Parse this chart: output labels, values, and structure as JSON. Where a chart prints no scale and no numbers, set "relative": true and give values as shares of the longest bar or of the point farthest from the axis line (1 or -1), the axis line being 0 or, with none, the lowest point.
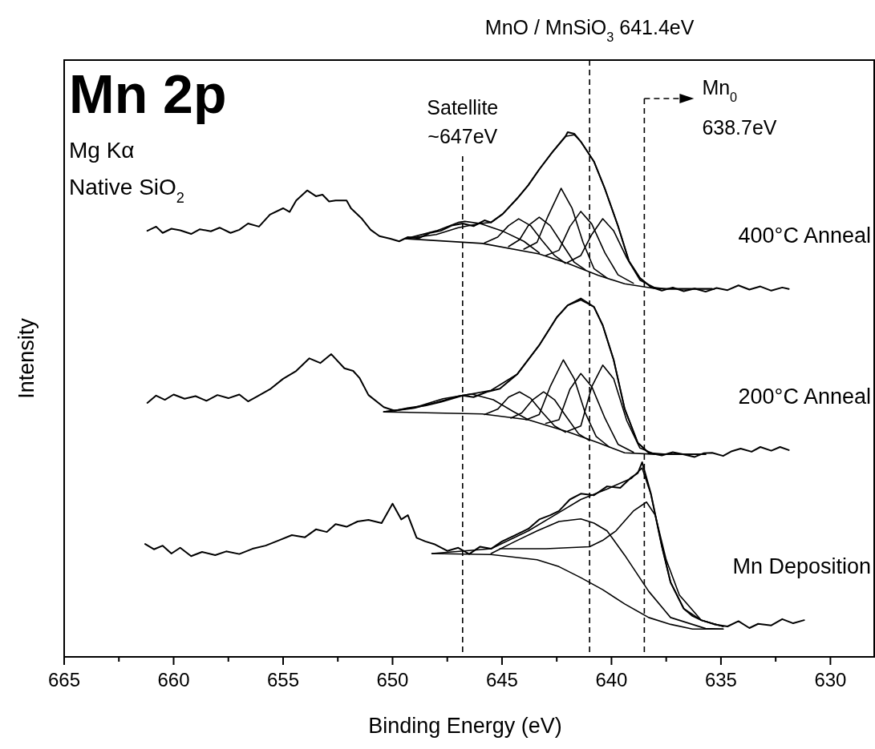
{
  "chart_data": {
    "type": "line",
    "relative": true,
    "xlabel": "Binding Energy (eV)",
    "ylabel": "Intensity",
    "xlim": [
      665,
      628
    ],
    "xticks": [
      665,
      {
        "value": 662.5,
        "label": null
      },
      660,
      {
        "value": 657.5,
        "label": null
      },
      655,
      {
        "value": 652.5,
        "label": null
      },
      650,
      {
        "value": 647.5,
        "label": null
      },
      645,
      {
        "value": 642.5,
        "label": null
      },
      640,
      {
        "value": 637.5,
        "label": null
      },
      635,
      {
        "value": 632.5,
        "label": null
      },
      630
    ],
    "line_style": "solid",
    "marker": "none",
    "grid": false,
    "annotations": [
      "Mn 2p",
      "Mg Kα",
      "Native SiO$_{2}$"
    ],
    "ref_lines": [
      {
        "axis": "x",
        "value": 646.8,
        "label": "Satellite ~647eV",
        "line_style": "dashed"
      },
      {
        "axis": "x",
        "value": 641.0,
        "label": "MnO / MnSiO$_{3}$ 641.4eV",
        "line_style": "dashed"
      },
      {
        "axis": "x",
        "value": 638.5,
        "label": "Mn$_{0}$ 638.7eV",
        "line_style": "dashed"
      }
    ],
    "series": [
      {
        "name": "400°C Anneal",
        "color": "#000000",
        "x": [
          661.2,
          660.8,
          660.5,
          660.1,
          659.7,
          659.2,
          658.8,
          658.3,
          657.9,
          657.4,
          657.0,
          656.6,
          656.1,
          655.6,
          655.0,
          654.7,
          654.4,
          653.9,
          653.5,
          653.2,
          652.9,
          652.6,
          652.1,
          651.9,
          651.4,
          651.0,
          650.6,
          650.1,
          649.7,
          649.3,
          648.8,
          648.3,
          647.8,
          647.3,
          646.8,
          646.3,
          645.8,
          645.5,
          644.97,
          644.3,
          643.8,
          643.3,
          642.7,
          642.1,
          642.0,
          641.7,
          641.4,
          640.8,
          640.3,
          639.7,
          639.2,
          638.7,
          638.2,
          637.7,
          637.2,
          636.7,
          636.2,
          635.7,
          635.2,
          634.7,
          634.2,
          633.7,
          633.2,
          632.7,
          632.2,
          631.9
        ],
        "values": [
          0.812,
          0.82,
          0.808,
          0.816,
          0.813,
          0.806,
          0.815,
          0.811,
          0.818,
          0.808,
          0.814,
          0.826,
          0.82,
          0.843,
          0.855,
          0.848,
          0.87,
          0.889,
          0.878,
          0.881,
          0.868,
          0.87,
          0.87,
          0.855,
          0.835,
          0.814,
          0.802,
          0.797,
          0.792,
          0.8,
          0.798,
          0.808,
          0.812,
          0.822,
          0.826,
          0.821,
          0.832,
          0.828,
          0.844,
          0.874,
          0.899,
          0.929,
          0.962,
          0.992,
          1.0,
          0.997,
          0.982,
          0.944,
          0.892,
          0.821,
          0.754,
          0.722,
          0.705,
          0.698,
          0.704,
          0.697,
          0.702,
          0.696,
          0.703,
          0.699,
          0.708,
          0.7,
          0.706,
          0.698,
          0.704,
          0.701
        ]
      },
      {
        "color": "#000000",
        "x": [
          649.4,
          648,
          647,
          646,
          645.5,
          644.97,
          644.3,
          643.8,
          643.3,
          642.7,
          642.1,
          641.7,
          641.4,
          640.8,
          640.3,
          639.7,
          639.2,
          638.7,
          638.2,
          637.5,
          636,
          635.3
        ],
        "values": [
          0.797,
          0.805,
          0.818,
          0.826,
          0.828,
          0.844,
          0.874,
          0.899,
          0.929,
          0.962,
          0.992,
          0.995,
          0.982,
          0.944,
          0.892,
          0.821,
          0.754,
          0.722,
          0.705,
          0.701,
          0.701,
          0.701
        ]
      },
      {
        "color": "#000000",
        "x": [
          649.4,
          645.9,
          643.3,
          642.0,
          640.6,
          639.4,
          638.0,
          635.4
        ],
        "values": [
          0.797,
          0.788,
          0.768,
          0.75,
          0.727,
          0.711,
          0.702,
          0.702
        ]
      },
      {
        "color": "#000000",
        "x": [
          649.4,
          648,
          647,
          646.7,
          646,
          645,
          644,
          643.3
        ],
        "values": [
          0.797,
          0.812,
          0.828,
          0.83,
          0.826,
          0.812,
          0.792,
          0.77
        ]
      },
      {
        "color": "#000000",
        "x": [
          645.8,
          645.2,
          644.7,
          644.24,
          643.7,
          643.2,
          642.6,
          642.1
        ],
        "values": [
          0.789,
          0.8,
          0.822,
          0.835,
          0.822,
          0.795,
          0.765,
          0.75
        ]
      },
      {
        "color": "#000000",
        "x": [
          644.7,
          644.2,
          643.8,
          643.3,
          642.8,
          642.3,
          641.7,
          641.2
        ],
        "values": [
          0.782,
          0.795,
          0.822,
          0.838,
          0.822,
          0.79,
          0.752,
          0.738
        ]
      },
      {
        "color": "#000000",
        "x": [
          644.0,
          643.4,
          642.9,
          642.3,
          641.8,
          641.3,
          640.8,
          640.2
        ],
        "values": [
          0.777,
          0.79,
          0.84,
          0.893,
          0.855,
          0.79,
          0.74,
          0.722
        ]
      },
      {
        "color": "#000000",
        "x": [
          643.0,
          642.4,
          641.9,
          641.4,
          640.9,
          640.3,
          639.7,
          639.0
        ],
        "values": [
          0.765,
          0.775,
          0.82,
          0.849,
          0.825,
          0.77,
          0.728,
          0.712
        ]
      },
      {
        "color": "#000000",
        "x": [
          642.0,
          641.4,
          640.9,
          640.4,
          639.9,
          639.3,
          638.7,
          638.0
        ],
        "values": [
          0.752,
          0.765,
          0.805,
          0.835,
          0.812,
          0.76,
          0.718,
          0.703
        ]
      },
      {
        "name": "200°C Anneal",
        "color": "#000000",
        "x": [
          661.2,
          660.8,
          660.4,
          660.0,
          659.5,
          659.0,
          658.5,
          658.0,
          657.5,
          657.0,
          656.6,
          656.2,
          655.6,
          655.0,
          654.4,
          653.8,
          653.3,
          652.8,
          652.2,
          651.8,
          651.5,
          651.1,
          650.4,
          649.9,
          649.2,
          648.5,
          647.8,
          647.3,
          646.8,
          646.3,
          645.7,
          645.1,
          644.3,
          643.3,
          642.5,
          642.0,
          641.4,
          640.8,
          640.4,
          639.9,
          639.4,
          638.8,
          638.3,
          637.7,
          637.2,
          636.7,
          636.2,
          635.8,
          635.4,
          634.9,
          634.5,
          634.1,
          633.6,
          633.2,
          632.7,
          632.3,
          631.9
        ],
        "values": [
          0.484,
          0.498,
          0.49,
          0.5,
          0.492,
          0.497,
          0.488,
          0.499,
          0.493,
          0.5,
          0.487,
          0.496,
          0.51,
          0.53,
          0.545,
          0.569,
          0.56,
          0.577,
          0.55,
          0.545,
          0.531,
          0.499,
          0.476,
          0.469,
          0.475,
          0.479,
          0.486,
          0.492,
          0.498,
          0.495,
          0.505,
          0.511,
          0.539,
          0.594,
          0.647,
          0.67,
          0.683,
          0.667,
          0.632,
          0.566,
          0.473,
          0.408,
          0.389,
          0.384,
          0.39,
          0.386,
          0.381,
          0.388,
          0.389,
          0.383,
          0.392,
          0.397,
          0.391,
          0.4,
          0.393,
          0.4,
          0.394
        ]
      },
      {
        "color": "#000000",
        "x": [
          650.4,
          649,
          648,
          647,
          646.4,
          645.5,
          644.3,
          643.3,
          642.5,
          642.0,
          641.4,
          640.8,
          640.4,
          639.9,
          639.4,
          638.8,
          638.3,
          637.5,
          635.7
        ],
        "values": [
          0.467,
          0.474,
          0.485,
          0.497,
          0.501,
          0.508,
          0.539,
          0.594,
          0.647,
          0.67,
          0.68,
          0.667,
          0.632,
          0.566,
          0.473,
          0.408,
          0.389,
          0.386,
          0.386
        ]
      },
      {
        "color": "#000000",
        "x": [
          650.4,
          645.9,
          643.8,
          642.0,
          640.6,
          639.4,
          638.0,
          635.7
        ],
        "values": [
          0.467,
          0.463,
          0.452,
          0.429,
          0.408,
          0.389,
          0.386,
          0.386
        ]
      },
      {
        "color": "#000000",
        "x": [
          650.4,
          649,
          647.7,
          646.4,
          645.4,
          644.5,
          643.8
        ],
        "values": [
          0.467,
          0.475,
          0.492,
          0.501,
          0.49,
          0.468,
          0.452
        ]
      },
      {
        "color": "#000000",
        "x": [
          645.8,
          645.2,
          644.7,
          644.2,
          643.7,
          643.2,
          642.6,
          642.1
        ],
        "values": [
          0.462,
          0.472,
          0.495,
          0.505,
          0.493,
          0.468,
          0.44,
          0.428
        ]
      },
      {
        "color": "#000000",
        "x": [
          644.6,
          644.1,
          643.6,
          643.1,
          642.6,
          642.1,
          641.5,
          641.0
        ],
        "values": [
          0.455,
          0.465,
          0.49,
          0.505,
          0.49,
          0.46,
          0.425,
          0.412
        ]
      },
      {
        "color": "#000000",
        "x": [
          643.9,
          643.3,
          642.8,
          642.2,
          641.7,
          641.2,
          640.7,
          640.1
        ],
        "values": [
          0.452,
          0.462,
          0.515,
          0.566,
          0.53,
          0.465,
          0.42,
          0.4
        ]
      },
      {
        "color": "#000000",
        "x": [
          643.0,
          642.4,
          641.9,
          641.4,
          640.9,
          640.3,
          639.7,
          639.0
        ],
        "values": [
          0.445,
          0.452,
          0.51,
          0.54,
          0.515,
          0.455,
          0.405,
          0.39
        ]
      },
      {
        "color": "#000000",
        "x": [
          642.0,
          641.4,
          640.9,
          640.4,
          639.9,
          639.3,
          638.7,
          638.0
        ],
        "values": [
          0.43,
          0.44,
          0.515,
          0.556,
          0.53,
          0.45,
          0.398,
          0.386
        ]
      },
      {
        "name": "Mn Deposition",
        "color": "#000000",
        "x": [
          661.3,
          660.9,
          660.5,
          660.1,
          659.7,
          659.2,
          658.7,
          658.1,
          657.6,
          657.0,
          656.4,
          655.8,
          655.2,
          654.6,
          654.0,
          653.5,
          653.0,
          652.6,
          652.1,
          651.6,
          651.1,
          650.5,
          650.0,
          649.6,
          649.3,
          648.9,
          648.5,
          648.1,
          647.5,
          647.0,
          646.5,
          646.0,
          645.5,
          645.0,
          644.4,
          643.8,
          643.3,
          642.8,
          642.4,
          641.9,
          641.4,
          640.8,
          640.2,
          639.6,
          639.1,
          638.8,
          638.6,
          638.2,
          637.7,
          637.3,
          636.7,
          636.3,
          635.9,
          635.3,
          634.7,
          634.2,
          633.7,
          633.3,
          632.7,
          632.2,
          631.7,
          631.2
        ],
        "values": [
          0.215,
          0.205,
          0.212,
          0.197,
          0.208,
          0.192,
          0.2,
          0.194,
          0.201,
          0.196,
          0.206,
          0.212,
          0.222,
          0.232,
          0.228,
          0.243,
          0.238,
          0.253,
          0.248,
          0.258,
          0.261,
          0.255,
          0.292,
          0.262,
          0.27,
          0.227,
          0.22,
          0.215,
          0.202,
          0.208,
          0.196,
          0.21,
          0.206,
          0.22,
          0.232,
          0.244,
          0.262,
          0.27,
          0.278,
          0.3,
          0.311,
          0.308,
          0.325,
          0.322,
          0.342,
          0.35,
          0.371,
          0.311,
          0.211,
          0.142,
          0.092,
          0.078,
          0.07,
          0.062,
          0.058,
          0.068,
          0.055,
          0.063,
          0.06,
          0.072,
          0.064,
          0.07
        ]
      },
      {
        "color": "#000000",
        "x": [
          648.2,
          645.5,
          643.8,
          642.4,
          641.4,
          640.2,
          639.1,
          638.6,
          638.2,
          637.7,
          637.3,
          636.7,
          635.9,
          634.9
        ],
        "values": [
          0.197,
          0.206,
          0.24,
          0.275,
          0.3,
          0.32,
          0.34,
          0.36,
          0.31,
          0.211,
          0.142,
          0.092,
          0.07,
          0.058
        ]
      },
      {
        "color": "#000000",
        "x": [
          648.2,
          645.5,
          643.4,
          642.4,
          641.4,
          640.4,
          639.4,
          638.3,
          637.3,
          636.3,
          634.9
        ],
        "values": [
          0.197,
          0.195,
          0.185,
          0.172,
          0.151,
          0.128,
          0.101,
          0.075,
          0.062,
          0.053,
          0.053
        ]
      },
      {
        "color": "#000000",
        "x": [
          645.5,
          644.4,
          643.4,
          642.4,
          641.4,
          640.8,
          640.2,
          639.4,
          638.3,
          637.3,
          635.7,
          634.9
        ],
        "values": [
          0.197,
          0.22,
          0.24,
          0.258,
          0.263,
          0.255,
          0.24,
          0.194,
          0.125,
          0.075,
          0.054,
          0.053
        ]
      },
      {
        "color": "#000000",
        "x": [
          645.1,
          643.0,
          641.0,
          640.4,
          639.8,
          639.0,
          638.4,
          638.0,
          637.5,
          636.9,
          635.9,
          634.9
        ],
        "values": [
          0.206,
          0.206,
          0.21,
          0.222,
          0.24,
          0.278,
          0.295,
          0.27,
          0.185,
          0.118,
          0.07,
          0.058
        ]
      }
    ]
  }
}
